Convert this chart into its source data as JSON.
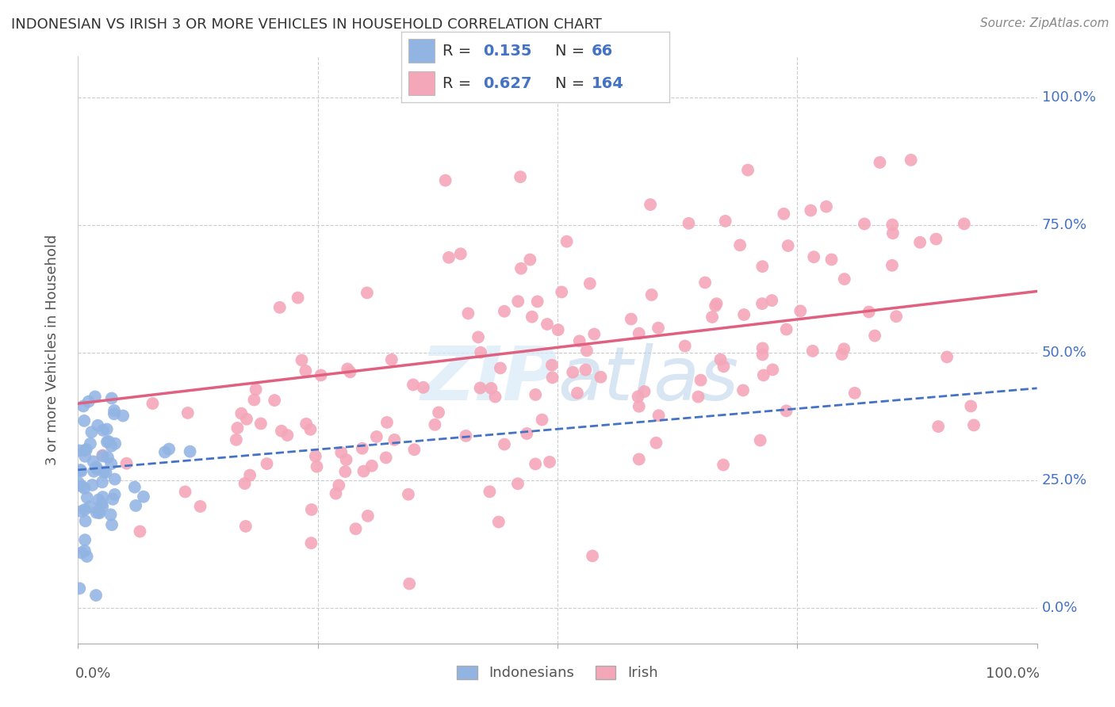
{
  "title": "INDONESIAN VS IRISH 3 OR MORE VEHICLES IN HOUSEHOLD CORRELATION CHART",
  "source": "Source: ZipAtlas.com",
  "ylabel": "3 or more Vehicles in Household",
  "xlim": [
    0.0,
    1.0
  ],
  "ylim": [
    -0.07,
    1.08
  ],
  "yticks": [
    0.0,
    0.25,
    0.5,
    0.75,
    1.0
  ],
  "ytick_labels": [
    "0.0%",
    "25.0%",
    "50.0%",
    "75.0%",
    "100.0%"
  ],
  "watermark_zip": "ZIP",
  "watermark_atlas": "atlas",
  "legend_r_indonesian": "0.135",
  "legend_n_indonesian": "66",
  "legend_r_irish": "0.627",
  "legend_n_irish": "164",
  "color_indonesian": "#92b4e3",
  "color_indonesian_line": "#4472c4",
  "color_irish": "#f4a7b9",
  "color_irish_line": "#e06080",
  "color_grid": "#cccccc",
  "color_title": "#333333",
  "color_axis_label": "#555555",
  "color_tick_label": "#4472c4",
  "color_legend_text_dark": "#333333",
  "color_legend_text_blue": "#4472c4",
  "background_color": "#ffffff",
  "n_indonesian": 66,
  "n_irish": 164,
  "r_indonesian": 0.135,
  "r_irish": 0.627,
  "irish_line_y0": 0.4,
  "irish_line_y1": 0.62,
  "ind_line_y0": 0.27,
  "ind_line_y1": 0.43
}
